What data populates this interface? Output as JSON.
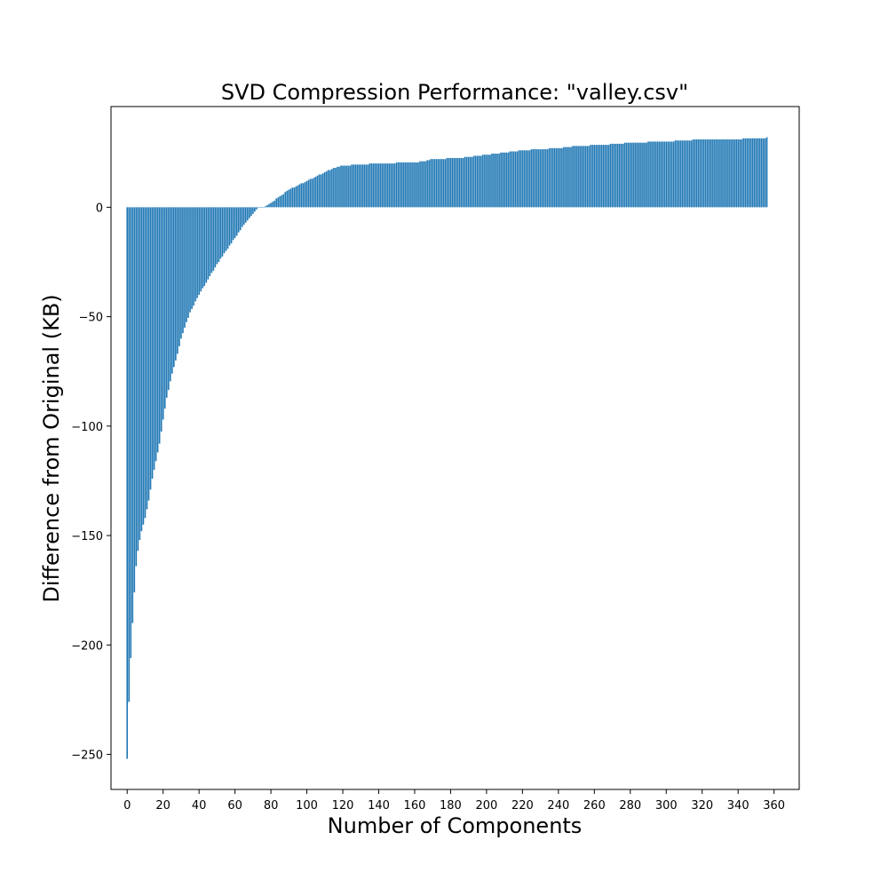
{
  "chart_data": {
    "type": "bar",
    "title": "SVD Compression Performance: \"valley.csv\"",
    "xlabel": "Number of Components",
    "ylabel": "Difference from Original (KB)",
    "xlim": [
      -9,
      374
    ],
    "ylim": [
      -266,
      46
    ],
    "xticks": [
      0,
      20,
      40,
      60,
      80,
      100,
      120,
      140,
      160,
      180,
      200,
      220,
      240,
      260,
      280,
      300,
      320,
      340,
      360
    ],
    "yticks": [
      0,
      -50,
      -100,
      -150,
      -200,
      -250
    ],
    "xtick_labels": [
      "0",
      "20",
      "40",
      "60",
      "80",
      "100",
      "120",
      "140",
      "160",
      "180",
      "200",
      "220",
      "240",
      "260",
      "280",
      "300",
      "320",
      "340",
      "360"
    ],
    "ytick_labels": [
      "0",
      "−50",
      "−100",
      "−150",
      "−200",
      "−250"
    ],
    "bar_color": "#1f77b4",
    "bar_width": 0.8,
    "n_bars": 357,
    "x_start": 0,
    "curve_points": [
      [
        0,
        -252
      ],
      [
        1,
        -226
      ],
      [
        2,
        -206
      ],
      [
        3,
        -190
      ],
      [
        4,
        -176
      ],
      [
        5,
        -164
      ],
      [
        6,
        -157
      ],
      [
        7,
        -152
      ],
      [
        8,
        -148
      ],
      [
        9,
        -145
      ],
      [
        10,
        -142
      ],
      [
        12,
        -134
      ],
      [
        14,
        -124
      ],
      [
        16,
        -116
      ],
      [
        18,
        -108
      ],
      [
        20,
        -97
      ],
      [
        22,
        -87
      ],
      [
        25,
        -76
      ],
      [
        28,
        -67
      ],
      [
        30,
        -60
      ],
      [
        32,
        -55
      ],
      [
        35,
        -48
      ],
      [
        40,
        -40
      ],
      [
        45,
        -33
      ],
      [
        50,
        -26
      ],
      [
        55,
        -20
      ],
      [
        60,
        -14
      ],
      [
        65,
        -8
      ],
      [
        70,
        -3
      ],
      [
        73,
        0
      ],
      [
        76,
        0
      ],
      [
        80,
        2
      ],
      [
        85,
        5
      ],
      [
        90,
        8
      ],
      [
        95,
        10
      ],
      [
        100,
        12
      ],
      [
        105,
        14
      ],
      [
        110,
        16
      ],
      [
        115,
        18
      ],
      [
        120,
        19
      ],
      [
        130,
        19.5
      ],
      [
        140,
        20
      ],
      [
        160,
        20.5
      ],
      [
        165,
        21
      ],
      [
        170,
        22
      ],
      [
        185,
        22.5
      ],
      [
        200,
        24
      ],
      [
        210,
        25
      ],
      [
        220,
        26
      ],
      [
        240,
        27
      ],
      [
        250,
        28
      ],
      [
        265,
        28.5
      ],
      [
        280,
        29.5
      ],
      [
        300,
        30
      ],
      [
        310,
        30.5
      ],
      [
        320,
        31
      ],
      [
        340,
        31.2
      ],
      [
        355,
        31.5
      ],
      [
        356,
        32
      ]
    ]
  }
}
